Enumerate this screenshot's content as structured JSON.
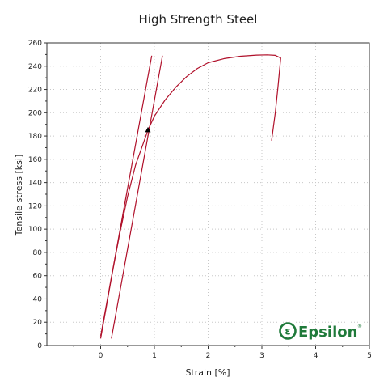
{
  "chart_data": {
    "type": "line",
    "title": "High Strength Steel",
    "xlabel": "Strain [%]",
    "ylabel": "Tensile stress [ksi]",
    "xlim": [
      -1,
      5
    ],
    "ylim": [
      0,
      260
    ],
    "x_ticks": [
      0,
      1,
      2,
      3,
      4,
      5
    ],
    "y_ticks": [
      0,
      20,
      40,
      60,
      80,
      100,
      120,
      140,
      160,
      180,
      200,
      220,
      240,
      260
    ],
    "grid": true,
    "colors": {
      "curve": "#b0102a",
      "grid": "#c8c8c8",
      "axis": "#333333",
      "logo": "#1f7a3a"
    },
    "series": [
      {
        "type": "stress-strain",
        "points": [
          [
            0,
            6
          ],
          [
            0.1,
            32
          ],
          [
            0.2,
            58
          ],
          [
            0.35,
            95
          ],
          [
            0.5,
            128
          ],
          [
            0.65,
            155
          ],
          [
            0.78,
            172
          ],
          [
            0.88,
            185
          ],
          [
            1.0,
            197
          ],
          [
            1.2,
            211
          ],
          [
            1.4,
            222
          ],
          [
            1.6,
            231
          ],
          [
            1.8,
            238
          ],
          [
            2.0,
            243
          ],
          [
            2.3,
            246.5
          ],
          [
            2.6,
            248.5
          ],
          [
            2.9,
            249.5
          ],
          [
            3.1,
            249.7
          ],
          [
            3.25,
            249.3
          ],
          [
            3.35,
            247
          ],
          [
            3.3,
            222
          ],
          [
            3.25,
            200
          ],
          [
            3.18,
            176
          ]
        ]
      },
      {
        "type": "modulus-line",
        "points": [
          [
            0,
            8
          ],
          [
            0.95,
            249
          ]
        ]
      },
      {
        "type": "offset-line",
        "points": [
          [
            0.2,
            6
          ],
          [
            1.15,
            249
          ]
        ]
      }
    ],
    "markers": [
      {
        "shape": "triangle",
        "x": 0.88,
        "y": 185
      }
    ]
  },
  "logo": {
    "text": "Epsilon",
    "symbol": "ɛ",
    "trademark": "®"
  }
}
